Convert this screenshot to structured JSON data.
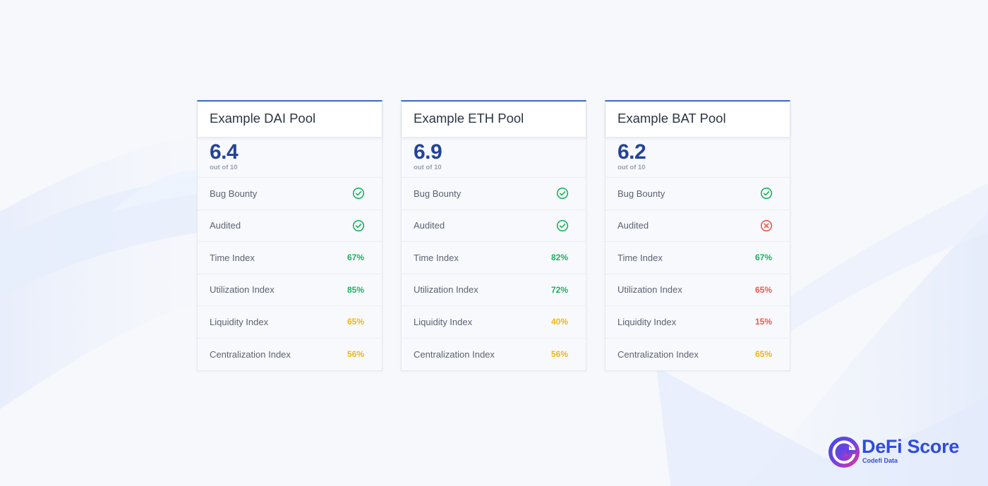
{
  "pools": [
    {
      "title": "Example DAI Pool",
      "score": "6.4",
      "out_of": "out of 10",
      "metrics": [
        {
          "label": "Bug Bounty",
          "icon": "check-circle-icon",
          "color": "#19b35f"
        },
        {
          "label": "Audited",
          "icon": "check-circle-icon",
          "color": "#19b35f"
        },
        {
          "label": "Time Index",
          "value": "67%",
          "color": "#19b35f"
        },
        {
          "label": "Utilization Index",
          "value": "85%",
          "color": "#19b35f"
        },
        {
          "label": "Liquidity Index",
          "value": "65%",
          "color": "#f0b613"
        },
        {
          "label": "Centralization Index",
          "value": "56%",
          "color": "#f0b613"
        }
      ]
    },
    {
      "title": "Example ETH Pool",
      "score": "6.9",
      "out_of": "out of 10",
      "metrics": [
        {
          "label": "Bug Bounty",
          "icon": "check-circle-icon",
          "color": "#19b35f"
        },
        {
          "label": "Audited",
          "icon": "check-circle-icon",
          "color": "#19b35f"
        },
        {
          "label": "Time Index",
          "value": "82%",
          "color": "#19b35f"
        },
        {
          "label": "Utilization Index",
          "value": "72%",
          "color": "#19b35f"
        },
        {
          "label": "Liquidity Index",
          "value": "40%",
          "color": "#f0b613"
        },
        {
          "label": "Centralization Index",
          "value": "56%",
          "color": "#f0b613"
        }
      ]
    },
    {
      "title": "Example BAT Pool",
      "score": "6.2",
      "out_of": "out of 10",
      "metrics": [
        {
          "label": "Bug Bounty",
          "icon": "check-circle-icon",
          "color": "#19b35f"
        },
        {
          "label": "Audited",
          "icon": "x-circle-icon",
          "color": "#ef5848"
        },
        {
          "label": "Time Index",
          "value": "67%",
          "color": "#19b35f"
        },
        {
          "label": "Utilization Index",
          "value": "65%",
          "color": "#ef5848"
        },
        {
          "label": "Liquidity Index",
          "value": "15%",
          "color": "#ef5848"
        },
        {
          "label": "Centralization Index",
          "value": "65%",
          "color": "#f0b613"
        }
      ]
    }
  ],
  "brand": {
    "name": "DeFi Score",
    "sub": "Codefi Data",
    "accent": "#2f4be0"
  }
}
